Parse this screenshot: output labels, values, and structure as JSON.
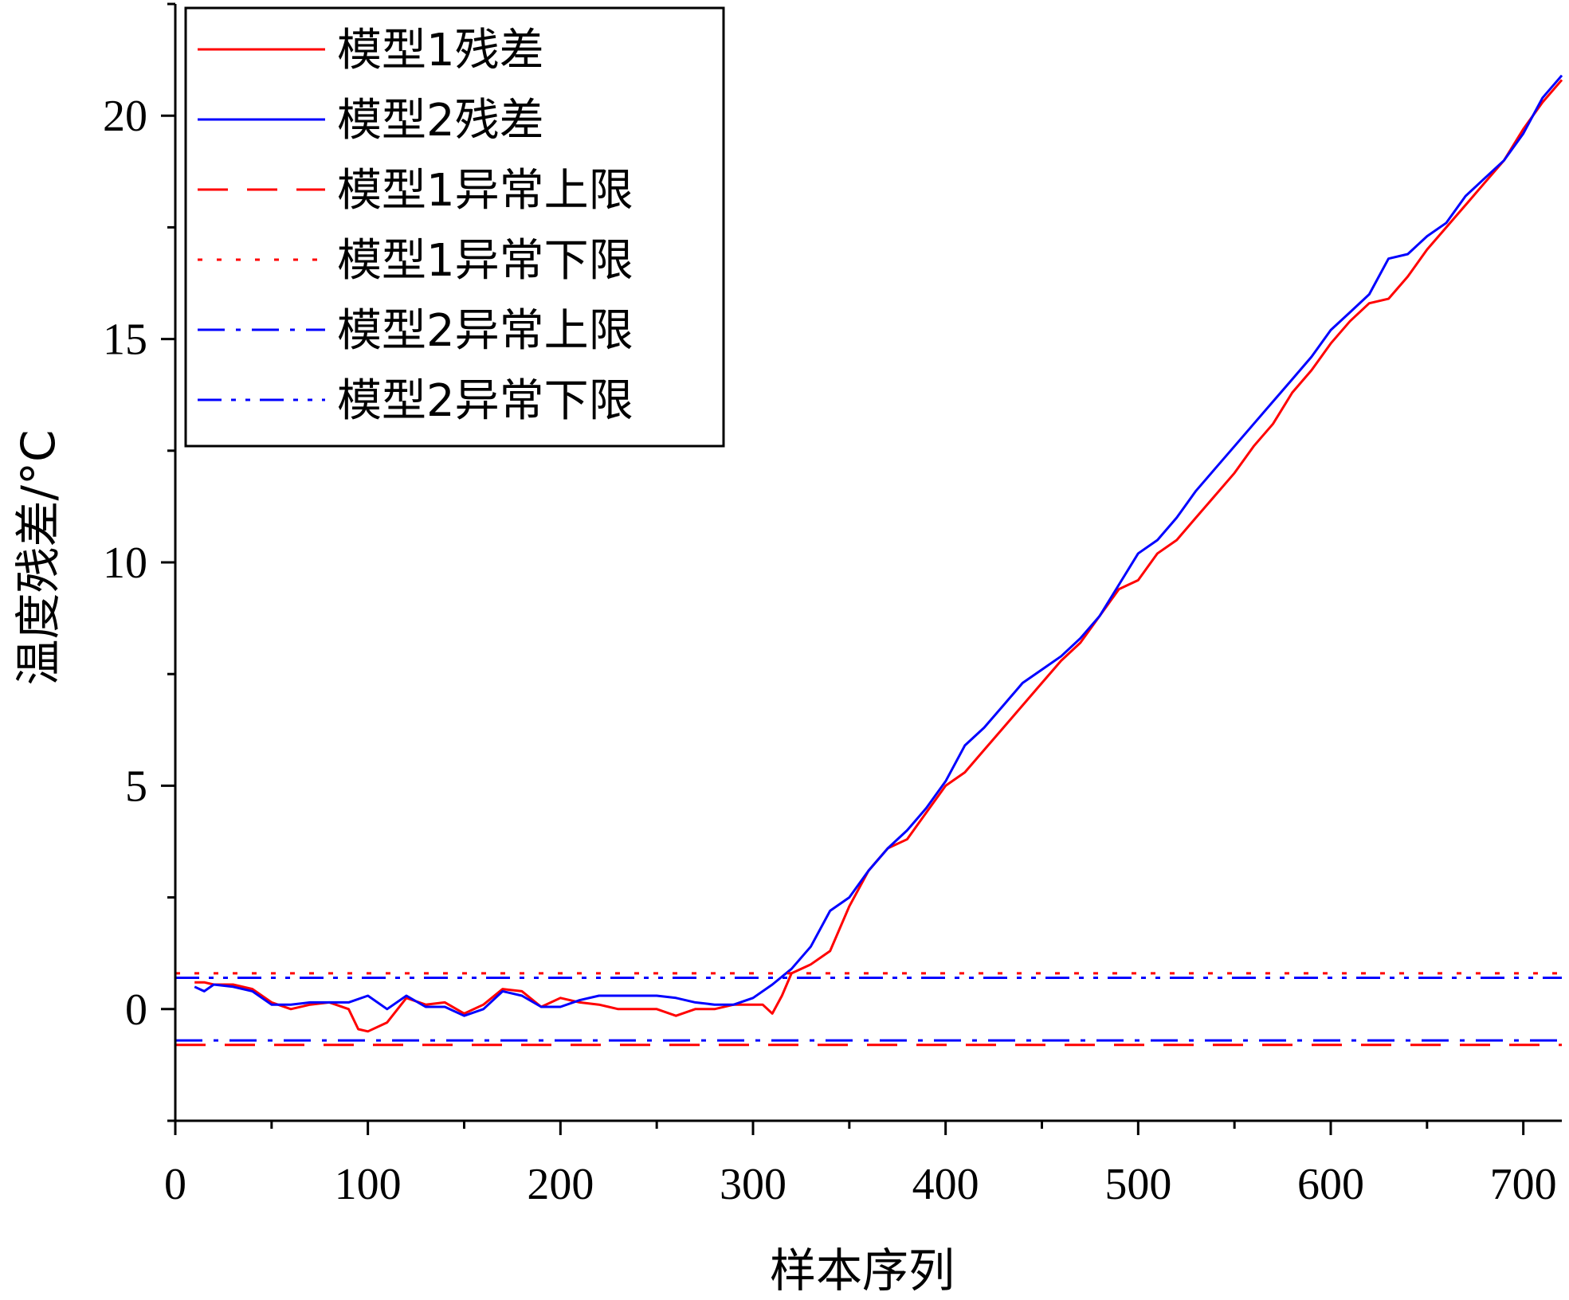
{
  "chart_data": {
    "type": "line",
    "title": "",
    "xlabel": "样本序列",
    "ylabel": "温度残差/°C",
    "xlim": [
      0,
      720
    ],
    "ylim": [
      -2.5,
      22.5
    ],
    "xticks": [
      0,
      100,
      200,
      300,
      400,
      500,
      600,
      700
    ],
    "yticks": [
      0,
      5,
      10,
      15,
      20
    ],
    "grid": false,
    "legend_position": "top-left",
    "series": [
      {
        "name": "模型1残差",
        "color": "#ff0000",
        "style": "solid",
        "x": [
          10,
          15,
          20,
          30,
          40,
          50,
          60,
          70,
          80,
          90,
          95,
          100,
          110,
          120,
          130,
          140,
          150,
          160,
          170,
          180,
          190,
          200,
          210,
          220,
          230,
          240,
          250,
          260,
          270,
          280,
          290,
          300,
          305,
          310,
          315,
          320,
          330,
          340,
          350,
          360,
          370,
          380,
          390,
          400,
          410,
          420,
          430,
          440,
          450,
          460,
          470,
          480,
          490,
          500,
          510,
          520,
          530,
          540,
          550,
          560,
          570,
          580,
          590,
          600,
          610,
          620,
          630,
          640,
          650,
          660,
          670,
          680,
          690,
          700,
          710,
          720
        ],
        "y": [
          0.6,
          0.6,
          0.55,
          0.55,
          0.45,
          0.15,
          0.0,
          0.1,
          0.15,
          0.0,
          -0.45,
          -0.5,
          -0.3,
          0.25,
          0.1,
          0.15,
          -0.1,
          0.1,
          0.45,
          0.4,
          0.05,
          0.25,
          0.15,
          0.1,
          0.0,
          0.0,
          0.0,
          -0.15,
          0.0,
          0.0,
          0.1,
          0.1,
          0.1,
          -0.1,
          0.3,
          0.8,
          1.0,
          1.3,
          2.3,
          3.1,
          3.6,
          3.8,
          4.4,
          5.0,
          5.3,
          5.8,
          6.3,
          6.8,
          7.3,
          7.8,
          8.2,
          8.8,
          9.4,
          9.6,
          10.2,
          10.5,
          11.0,
          11.5,
          12.0,
          12.6,
          13.1,
          13.8,
          14.3,
          14.9,
          15.4,
          15.8,
          15.9,
          16.4,
          17.0,
          17.5,
          18.0,
          18.5,
          19.0,
          19.7,
          20.3,
          20.8
        ]
      },
      {
        "name": "模型2残差",
        "color": "#0000ff",
        "style": "solid",
        "x": [
          10,
          15,
          20,
          30,
          40,
          50,
          60,
          70,
          80,
          90,
          100,
          110,
          120,
          130,
          140,
          150,
          160,
          170,
          180,
          190,
          200,
          210,
          220,
          230,
          240,
          250,
          260,
          270,
          280,
          290,
          300,
          310,
          320,
          330,
          340,
          350,
          360,
          370,
          380,
          390,
          400,
          410,
          420,
          430,
          440,
          450,
          460,
          470,
          480,
          490,
          500,
          510,
          520,
          530,
          540,
          550,
          560,
          570,
          580,
          590,
          600,
          610,
          620,
          630,
          640,
          650,
          660,
          670,
          680,
          690,
          700,
          710,
          720
        ],
        "y": [
          0.5,
          0.4,
          0.55,
          0.5,
          0.4,
          0.1,
          0.1,
          0.15,
          0.15,
          0.15,
          0.3,
          0.0,
          0.3,
          0.05,
          0.05,
          -0.15,
          0.0,
          0.4,
          0.3,
          0.05,
          0.05,
          0.2,
          0.3,
          0.3,
          0.3,
          0.3,
          0.25,
          0.15,
          0.1,
          0.1,
          0.25,
          0.55,
          0.9,
          1.4,
          2.2,
          2.5,
          3.1,
          3.6,
          4.0,
          4.5,
          5.1,
          5.9,
          6.3,
          6.8,
          7.3,
          7.6,
          7.9,
          8.3,
          8.8,
          9.5,
          10.2,
          10.5,
          11.0,
          11.6,
          12.1,
          12.6,
          13.1,
          13.6,
          14.1,
          14.6,
          15.2,
          15.6,
          16.0,
          16.8,
          16.9,
          17.3,
          17.6,
          18.2,
          18.6,
          19.0,
          19.6,
          20.4,
          20.9
        ]
      },
      {
        "name": "模型1异常上限",
        "color": "#ff0000",
        "style": "dashed",
        "x": [
          0,
          720
        ],
        "y": [
          -0.8,
          -0.8
        ]
      },
      {
        "name": "模型1异常下限",
        "color": "#ff0000",
        "style": "dotted",
        "x": [
          0,
          720
        ],
        "y": [
          0.8,
          0.8
        ]
      },
      {
        "name": "模型2异常上限",
        "color": "#0000ff",
        "style": "dashdot",
        "x": [
          0,
          720
        ],
        "y": [
          -0.7,
          -0.7
        ]
      },
      {
        "name": "模型2异常下限",
        "color": "#0000ff",
        "style": "dashdotdot",
        "x": [
          0,
          720
        ],
        "y": [
          0.7,
          0.7
        ]
      }
    ]
  }
}
